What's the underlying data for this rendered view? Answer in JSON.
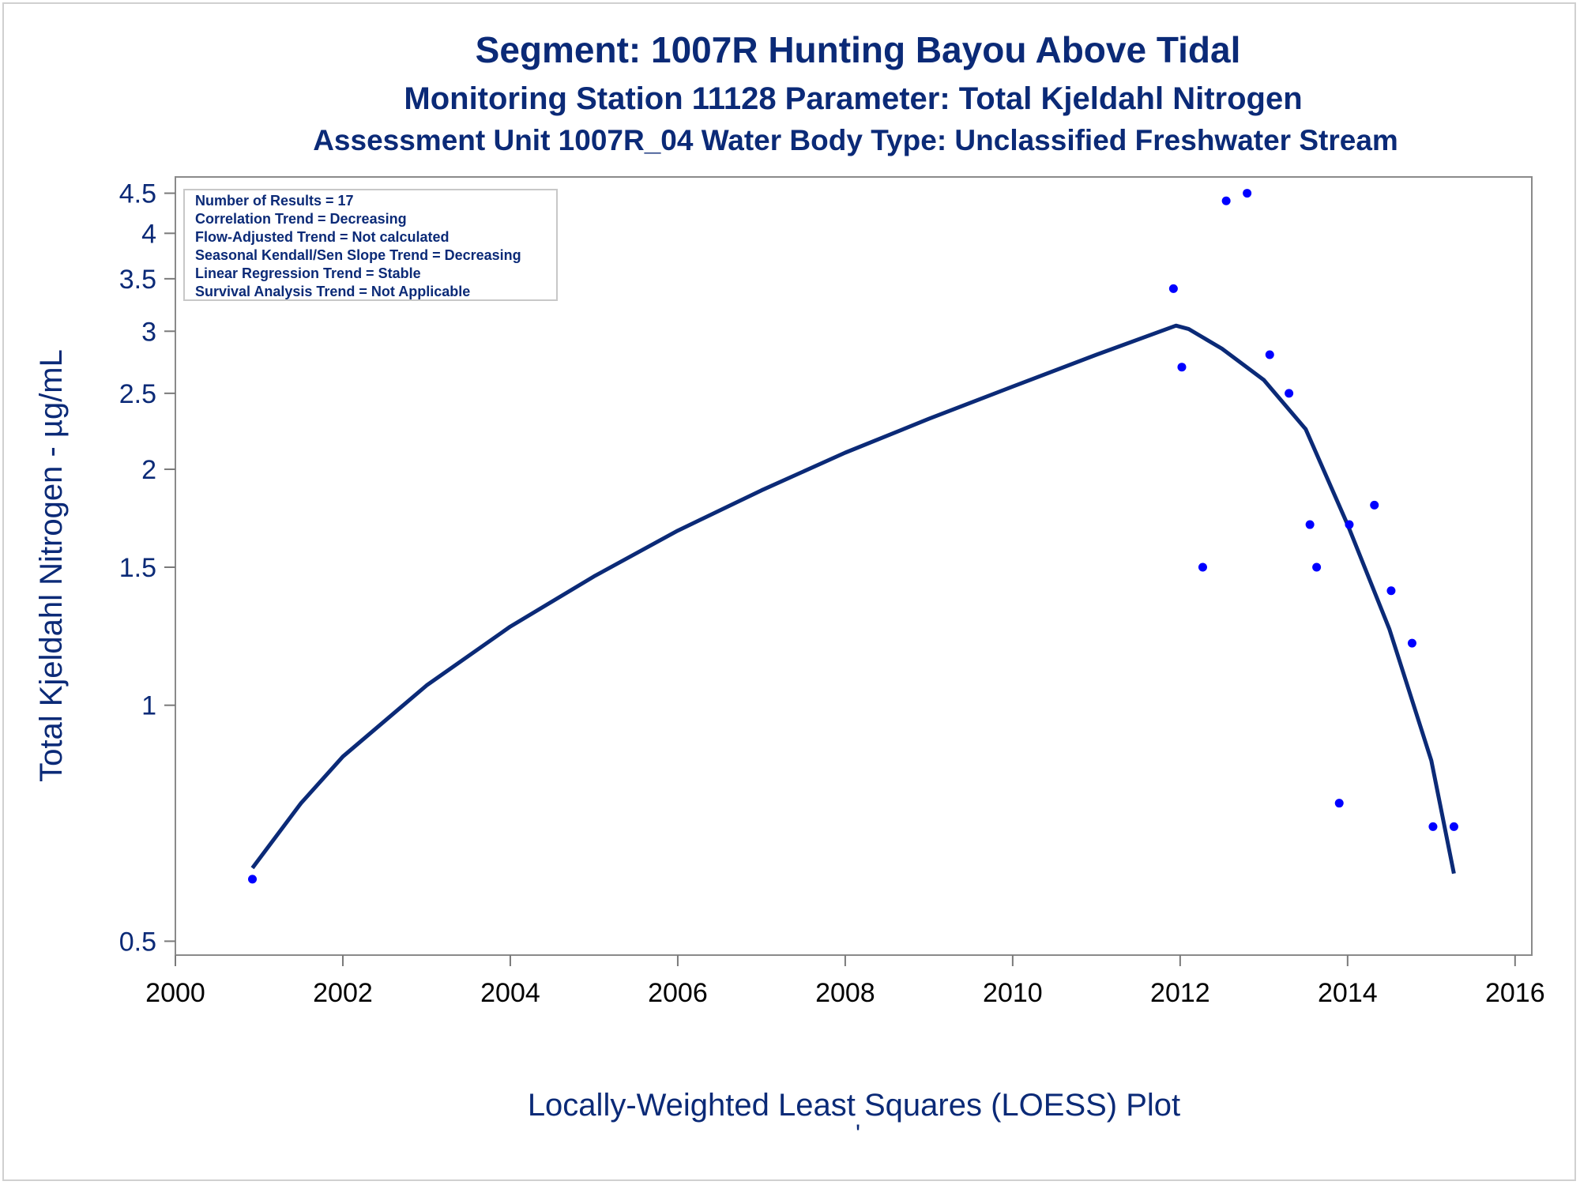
{
  "chart_data": {
    "type": "scatter",
    "title": "Segment: 1007R  Hunting Bayou Above Tidal",
    "subtitle": "Monitoring Station 11128 Parameter: Total Kjeldahl Nitrogen",
    "subtitle2": "Assessment Unit 1007R_04   Water Body Type: Unclassified Freshwater Stream",
    "xlabel": "Locally-Weighted Least Squares (LOESS) Plot",
    "ylabel": "Total Kjeldahl Nitrogen -  µg/mL",
    "footnote": "'",
    "y_scale": "log",
    "xlim": [
      2000,
      2016.2
    ],
    "ylim": [
      0.48,
      4.72
    ],
    "x_ticks": [
      "2000",
      "2002",
      "2004",
      "2006",
      "2008",
      "2010",
      "2012",
      "2014",
      "2016"
    ],
    "y_ticks": [
      "0.5",
      "1",
      "1.5",
      "2",
      "2.5",
      "3",
      "3.5",
      "4",
      "4.5"
    ],
    "grid": false,
    "legend": "none",
    "stats_box": {
      "lines": [
        "Number of Results = 17",
        "Correlation Trend = Decreasing",
        "Flow-Adjusted Trend = Not calculated",
        "Seasonal Kendall/Sen Slope Trend = Decreasing",
        "Linear Regression Trend = Stable",
        "Survival Analysis Trend = Not Applicable"
      ]
    },
    "series": [
      {
        "kind": "points",
        "color": "#0000ff",
        "x": [
          2000.92,
          2011.92,
          2012.02,
          2012.27,
          2012.55,
          2012.8,
          2013.07,
          2013.3,
          2013.55,
          2013.63,
          2013.9,
          2014.02,
          2014.32,
          2014.52,
          2014.77,
          2015.02,
          2015.27
        ],
        "y": [
          0.6,
          3.4,
          2.7,
          1.5,
          4.4,
          4.5,
          2.8,
          2.5,
          1.7,
          1.5,
          0.75,
          1.7,
          1.8,
          1.4,
          1.2,
          0.7,
          0.7
        ]
      },
      {
        "kind": "line",
        "color": "#0b2a77",
        "x": [
          2000.92,
          2001.5,
          2002.0,
          2003.0,
          2004.0,
          2005.0,
          2006.0,
          2007.0,
          2008.0,
          2009.0,
          2010.0,
          2011.0,
          2011.95,
          2012.1,
          2012.5,
          2013.0,
          2013.5,
          2014.0,
          2014.5,
          2015.0,
          2015.27
        ],
        "y": [
          0.62,
          0.75,
          0.86,
          1.06,
          1.26,
          1.46,
          1.67,
          1.88,
          2.1,
          2.32,
          2.55,
          2.8,
          3.05,
          3.02,
          2.85,
          2.6,
          2.25,
          1.7,
          1.25,
          0.85,
          0.61
        ]
      }
    ]
  }
}
